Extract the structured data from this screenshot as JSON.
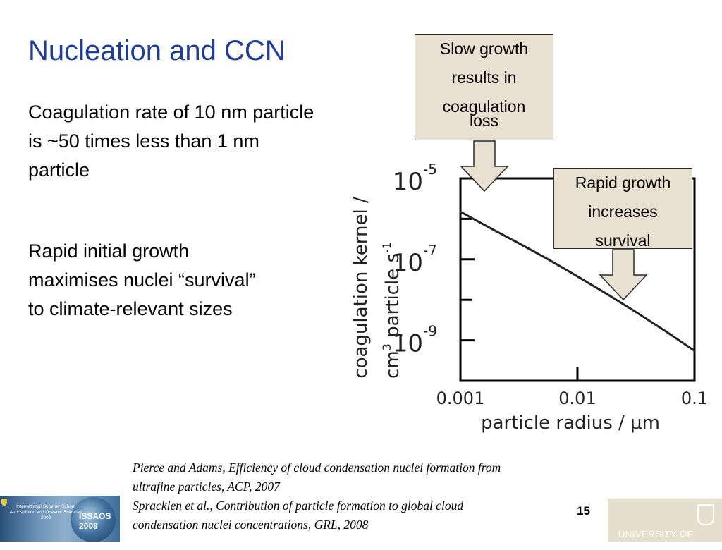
{
  "title": "Nucleation and CCN",
  "bullets": [
    "Coagulation rate of 10 nm particle is ~50 times less than 1 nm particle",
    "Rapid initial growth maximises nuclei “survival” to climate-relevant sizes"
  ],
  "callouts": {
    "slow": [
      "Slow growth",
      "results in",
      "coagulation",
      "loss"
    ],
    "rapid": [
      "Rapid growth",
      "increases",
      "survival"
    ]
  },
  "chart_data": {
    "type": "line",
    "xlabel": "particle radius / μm",
    "ylabel_line1": "coagulation kernel /",
    "ylabel_line2_parts": [
      "cm",
      "3",
      " particle s",
      "-1"
    ],
    "xscale": "log",
    "yscale": "log",
    "xlim": [
      0.001,
      0.1
    ],
    "ylim": [
      1e-10,
      1e-05
    ],
    "x_ticks": [
      {
        "value": 0.001,
        "label": "0.001"
      },
      {
        "value": 0.01,
        "label": "0.01"
      },
      {
        "value": 0.1,
        "label": "0.1"
      }
    ],
    "y_ticks": [
      {
        "value": 1e-05,
        "base": "10",
        "exp": "-5"
      },
      {
        "value": 1e-07,
        "base": "10",
        "exp": "-7"
      },
      {
        "value": 1e-09,
        "base": "10",
        "exp": "-9"
      }
    ],
    "series": [
      {
        "x": [
          0.001,
          0.00178,
          0.00316,
          0.00562,
          0.01,
          0.0178,
          0.0316,
          0.0562,
          0.1
        ],
        "y": [
          1.5e-06,
          6e-07,
          2.5e-07,
          1e-07,
          3.8e-08,
          1.4e-08,
          5e-09,
          1.7e-09,
          5.5e-10
        ]
      }
    ],
    "colors": {
      "curve": "#222222",
      "axes": "#000000"
    }
  },
  "references": [
    "Pierce and Adams, Efficiency of cloud condensation nuclei formation from",
    "ultrafine particles, ACP, 2007",
    "Spracklen et al., Contribution of particle formation to global cloud",
    "condensation nuclei concentrations, GRL, 2008"
  ],
  "page_number": "15",
  "logos": {
    "left_text": "International Summer School Atmospheric and Oceanic Sciences 2008",
    "left_badge": "ISSAOS 2008",
    "right_text": "UNIVERSITY OF LEEDS"
  }
}
